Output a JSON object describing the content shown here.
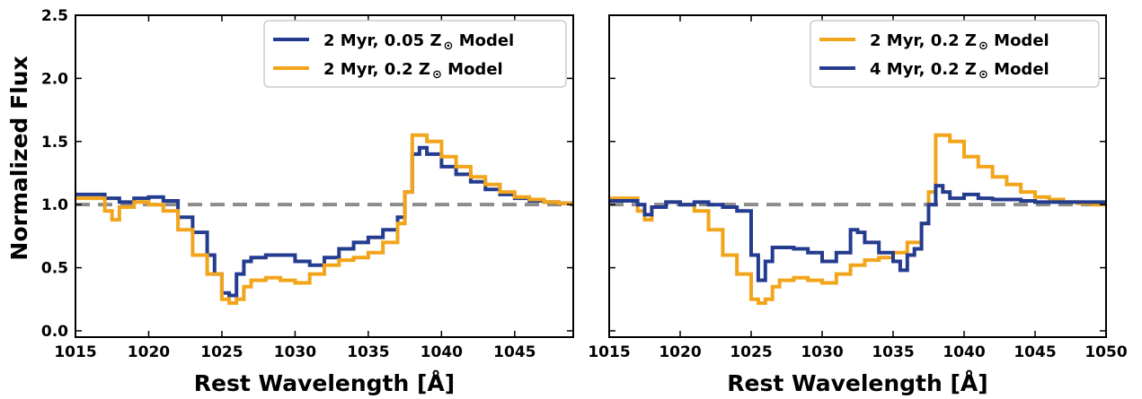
{
  "colors": {
    "blue": "#243c8f",
    "orange": "#f2a51a",
    "reference": "#8c8c8c",
    "frame": "#000000"
  },
  "chart_data": [
    {
      "type": "line",
      "step": true,
      "xlabel": "Rest Wavelength [Å]",
      "ylabel": "Normalized Flux",
      "xlim": [
        1015,
        1049
      ],
      "ylim": [
        -0.05,
        2.5
      ],
      "xticks": [
        1015,
        1020,
        1025,
        1030,
        1035,
        1040,
        1045
      ],
      "xtick_labels": [
        "1015",
        "1020",
        "1025",
        "1030",
        "1035",
        "1040",
        "1045"
      ],
      "yticks": [
        0.0,
        0.5,
        1.0,
        1.5,
        2.0,
        2.5
      ],
      "ytick_labels": [
        "0.0",
        "0.5",
        "1.0",
        "1.5",
        "2.0",
        "2.5"
      ],
      "reference_line": 1.0,
      "legend_position": "upper right",
      "legend": [
        {
          "main": "2 Myr,  0.05 Z",
          "symbol": "⊙",
          "tail": " Model",
          "color": "blue"
        },
        {
          "main": "2 Myr,  0.2 Z",
          "symbol": "⊙",
          "tail": " Model",
          "color": "orange"
        }
      ],
      "series": [
        {
          "color": "blue",
          "x": [
            1015,
            1016,
            1017,
            1018,
            1019,
            1020,
            1021,
            1022,
            1023,
            1024,
            1024.5,
            1025,
            1025.5,
            1026,
            1026.5,
            1027,
            1028,
            1029,
            1030,
            1031,
            1032,
            1033,
            1034,
            1035,
            1036,
            1037,
            1037.5,
            1038,
            1038.5,
            1039,
            1040,
            1041,
            1042,
            1043,
            1044,
            1045,
            1046,
            1047,
            1048,
            1049
          ],
          "y": [
            1.08,
            1.08,
            1.05,
            1.02,
            1.05,
            1.06,
            1.03,
            0.9,
            0.78,
            0.6,
            0.45,
            0.3,
            0.28,
            0.45,
            0.55,
            0.58,
            0.6,
            0.6,
            0.55,
            0.52,
            0.58,
            0.65,
            0.7,
            0.74,
            0.8,
            0.9,
            1.1,
            1.4,
            1.45,
            1.4,
            1.3,
            1.24,
            1.18,
            1.12,
            1.08,
            1.05,
            1.03,
            1.02,
            1.01,
            1.0
          ]
        },
        {
          "color": "orange",
          "x": [
            1015,
            1016,
            1017,
            1017.5,
            1018,
            1019,
            1020,
            1021,
            1022,
            1023,
            1024,
            1025,
            1025.5,
            1026,
            1026.5,
            1027,
            1028,
            1029,
            1030,
            1031,
            1032,
            1033,
            1034,
            1035,
            1036,
            1037,
            1037.5,
            1038,
            1038.5,
            1039,
            1040,
            1041,
            1042,
            1043,
            1044,
            1045,
            1046,
            1047,
            1048,
            1049
          ],
          "y": [
            1.05,
            1.05,
            0.95,
            0.88,
            0.98,
            1.02,
            1.0,
            0.95,
            0.8,
            0.6,
            0.45,
            0.25,
            0.22,
            0.25,
            0.35,
            0.4,
            0.42,
            0.4,
            0.38,
            0.45,
            0.52,
            0.56,
            0.58,
            0.62,
            0.7,
            0.85,
            1.1,
            1.55,
            1.55,
            1.5,
            1.38,
            1.3,
            1.22,
            1.16,
            1.1,
            1.06,
            1.04,
            1.02,
            1.01,
            1.0
          ]
        }
      ]
    },
    {
      "type": "line",
      "step": true,
      "xlabel": "Rest Wavelength [Å]",
      "ylabel": "",
      "xlim": [
        1015,
        1050
      ],
      "ylim": [
        -0.05,
        2.5
      ],
      "xticks": [
        1015,
        1020,
        1025,
        1030,
        1035,
        1040,
        1045,
        1050
      ],
      "xtick_labels": [
        "1015",
        "1020",
        "1025",
        "1030",
        "1035",
        "1040",
        "1045",
        "1050"
      ],
      "yticks": [
        0.0,
        0.5,
        1.0,
        1.5,
        2.0,
        2.5
      ],
      "ytick_labels": [],
      "reference_line": 1.0,
      "legend_position": "upper right",
      "legend": [
        {
          "main": "2 Myr,  0.2 Z",
          "symbol": "⊙",
          "tail": " Model",
          "color": "orange"
        },
        {
          "main": "4 Myr,  0.2 Z",
          "symbol": "⊙",
          "tail": " Model",
          "color": "blue"
        }
      ],
      "series": [
        {
          "color": "orange",
          "x": [
            1015,
            1016,
            1017,
            1017.5,
            1018,
            1019,
            1020,
            1021,
            1022,
            1023,
            1024,
            1025,
            1025.5,
            1026,
            1026.5,
            1027,
            1028,
            1029,
            1030,
            1031,
            1032,
            1033,
            1034,
            1035,
            1036,
            1037,
            1037.5,
            1038,
            1038.5,
            1039,
            1040,
            1041,
            1042,
            1043,
            1044,
            1045,
            1046,
            1047,
            1048,
            1049,
            1050
          ],
          "y": [
            1.05,
            1.05,
            0.95,
            0.88,
            0.98,
            1.02,
            1.0,
            0.95,
            0.8,
            0.6,
            0.45,
            0.25,
            0.22,
            0.25,
            0.35,
            0.4,
            0.42,
            0.4,
            0.38,
            0.45,
            0.52,
            0.56,
            0.58,
            0.62,
            0.7,
            0.85,
            1.1,
            1.55,
            1.55,
            1.5,
            1.38,
            1.3,
            1.22,
            1.16,
            1.1,
            1.06,
            1.04,
            1.02,
            1.01,
            1.0,
            1.0
          ]
        },
        {
          "color": "blue",
          "x": [
            1015,
            1016,
            1017,
            1017.5,
            1018,
            1019,
            1020,
            1021,
            1022,
            1023,
            1024,
            1025,
            1025.5,
            1026,
            1026.5,
            1027,
            1028,
            1029,
            1030,
            1031,
            1032,
            1032.5,
            1033,
            1034,
            1035,
            1035.5,
            1036,
            1036.5,
            1037,
            1037.5,
            1038,
            1038.5,
            1039,
            1040,
            1041,
            1042,
            1043,
            1044,
            1045,
            1046,
            1047,
            1048,
            1049,
            1050
          ],
          "y": [
            1.03,
            1.03,
            1.0,
            0.92,
            0.98,
            1.02,
            1.0,
            1.02,
            1.0,
            0.98,
            0.95,
            0.6,
            0.4,
            0.55,
            0.66,
            0.66,
            0.65,
            0.62,
            0.55,
            0.62,
            0.8,
            0.78,
            0.7,
            0.62,
            0.55,
            0.48,
            0.6,
            0.65,
            0.85,
            1.0,
            1.15,
            1.1,
            1.05,
            1.08,
            1.05,
            1.04,
            1.04,
            1.03,
            1.02,
            1.02,
            1.02,
            1.02,
            1.02,
            1.01
          ]
        }
      ]
    }
  ]
}
